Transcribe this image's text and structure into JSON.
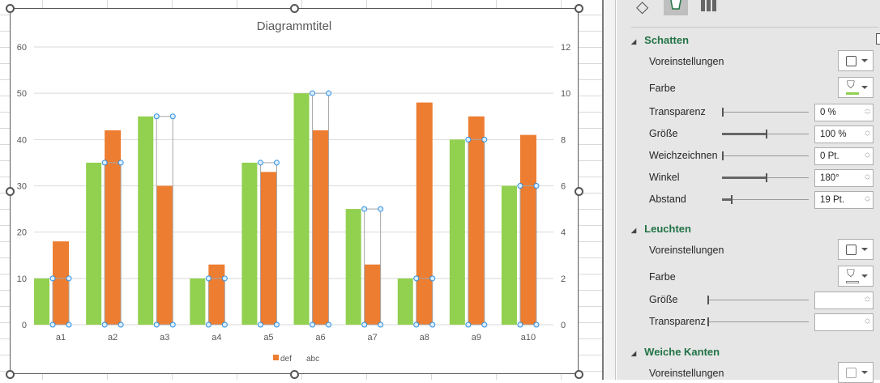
{
  "chart": {
    "title": "Diagrammtitel",
    "legend": [
      {
        "label": "def",
        "color": "#ED7D31"
      },
      {
        "label": "abc",
        "color": "none"
      }
    ]
  },
  "chart_data": {
    "type": "bar",
    "title": "Diagrammtitel",
    "categories": [
      "a1",
      "a2",
      "a3",
      "a4",
      "a5",
      "a6",
      "a7",
      "a8",
      "a9",
      "a10"
    ],
    "series": [
      {
        "name": "def",
        "axis": "primary",
        "color": "#ED7D31",
        "values": [
          18,
          42,
          30,
          13,
          33,
          42,
          13,
          48,
          45,
          41
        ]
      },
      {
        "name": "abc",
        "axis": "secondary",
        "fill": "none",
        "selected": true,
        "shadow_color": "#92D050",
        "values": [
          2,
          7,
          9,
          2,
          7,
          10,
          5,
          2,
          8,
          6
        ]
      }
    ],
    "ylim": [
      0,
      60
    ],
    "yticks": [
      0,
      10,
      20,
      30,
      40,
      50,
      60
    ],
    "y2lim": [
      0,
      12
    ],
    "y2ticks": [
      0,
      2,
      4,
      6,
      8,
      10,
      12
    ],
    "grid": true,
    "legend_position": "bottom"
  },
  "panel": {
    "tabs": [
      "fill-line-icon",
      "effects-icon",
      "series-options-icon"
    ],
    "shadow": {
      "header": "Schatten",
      "presets": "Voreinstellungen",
      "color": "Farbe",
      "color_value": "#92D050",
      "rows": [
        {
          "label": "Transparenz",
          "value": "0 %",
          "level": 0
        },
        {
          "label": "Größe",
          "value": "100 %",
          "level": 0.5
        },
        {
          "label": "Weichzeichnen",
          "value": "0 Pt.",
          "level": 0
        },
        {
          "label": "Winkel",
          "value": "180°",
          "level": 0.5
        },
        {
          "label": "Abstand",
          "value": "19 Pt.",
          "level": 0.1
        }
      ]
    },
    "glow": {
      "header": "Leuchten",
      "presets": "Voreinstellungen",
      "color": "Farbe",
      "rows": [
        {
          "label": "Größe",
          "value": ""
        },
        {
          "label": "Transparenz",
          "value": ""
        }
      ]
    },
    "soft_edges": {
      "header": "Weiche Kanten",
      "presets": "Voreinstellungen"
    }
  }
}
